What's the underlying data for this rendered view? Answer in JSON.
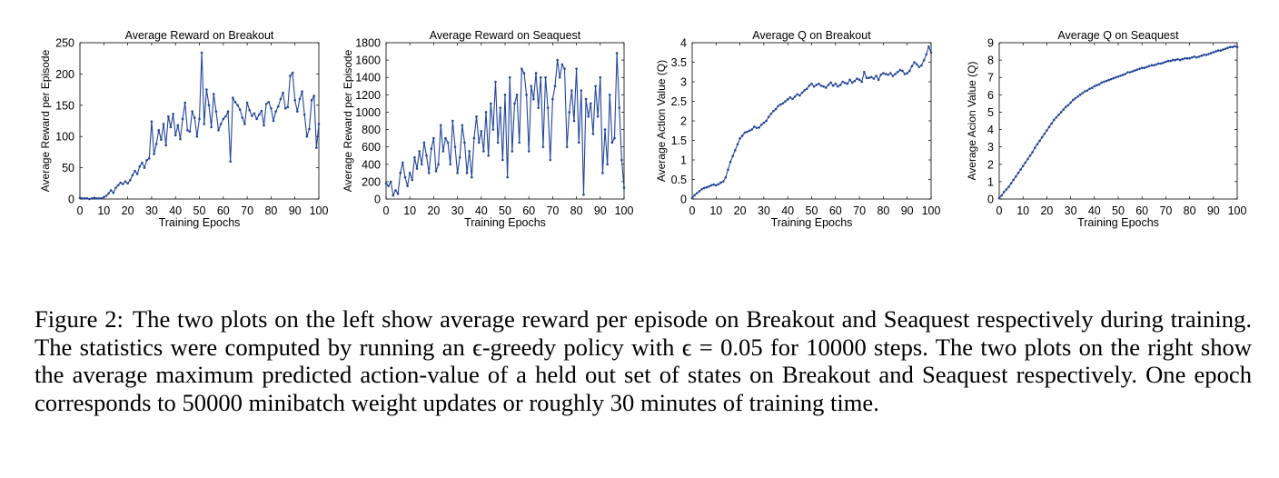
{
  "figure": {
    "caption": {
      "label": "Figure 2:",
      "text": "The two plots on the left show average reward per episode on Breakout and Seaquest respectively during training. The statistics were computed by running an ϵ-greedy policy with ϵ = 0.05 for 10000 steps. The two plots on the right show the average maximum predicted action-value of a held out set of states on Breakout and Seaquest respectively. One epoch corresponds to 50000 minibatch weight updates or roughly 30 minutes of training time."
    }
  },
  "chart_data": [
    {
      "type": "line",
      "title": "Average Reward on Breakout",
      "xlabel": "Training Epochs",
      "ylabel": "Average Reward per Episode",
      "xlim": [
        0,
        100
      ],
      "ylim": [
        0,
        250
      ],
      "xticks": [
        0,
        10,
        20,
        30,
        40,
        50,
        60,
        70,
        80,
        90,
        100
      ],
      "yticks": [
        0,
        50,
        100,
        150,
        200,
        250
      ],
      "grid": false,
      "color": "#23469b",
      "x": [
        0,
        1,
        2,
        3,
        4,
        5,
        6,
        7,
        8,
        9,
        10,
        11,
        12,
        13,
        14,
        15,
        16,
        17,
        18,
        19,
        20,
        21,
        22,
        23,
        24,
        25,
        26,
        27,
        28,
        29,
        30,
        31,
        32,
        33,
        34,
        35,
        36,
        37,
        38,
        39,
        40,
        41,
        42,
        43,
        44,
        45,
        46,
        47,
        48,
        49,
        50,
        51,
        52,
        53,
        54,
        55,
        56,
        57,
        58,
        59,
        60,
        61,
        62,
        63,
        64,
        65,
        66,
        67,
        68,
        69,
        70,
        71,
        72,
        73,
        74,
        75,
        76,
        77,
        78,
        79,
        80,
        81,
        82,
        83,
        84,
        85,
        86,
        87,
        88,
        89,
        90,
        91,
        92,
        93,
        94,
        95,
        96,
        97,
        98,
        99,
        100
      ],
      "y": [
        2,
        1,
        1,
        1,
        0,
        1,
        2,
        1,
        1,
        1,
        3,
        5,
        9,
        14,
        10,
        18,
        22,
        26,
        24,
        28,
        25,
        30,
        38,
        45,
        40,
        52,
        58,
        50,
        62,
        65,
        124,
        72,
        88,
        110,
        95,
        120,
        86,
        132,
        115,
        136,
        102,
        118,
        96,
        128,
        154,
        110,
        108,
        140,
        130,
        100,
        128,
        234,
        120,
        175,
        150,
        115,
        168,
        140,
        110,
        120,
        128,
        132,
        140,
        60,
        162,
        155,
        150,
        143,
        130,
        120,
        154,
        142,
        133,
        137,
        128,
        135,
        141,
        118,
        152,
        155,
        145,
        125,
        140,
        148,
        160,
        170,
        145,
        147,
        197,
        202,
        158,
        140,
        160,
        172,
        135,
        100,
        112,
        158,
        165,
        82,
        120
      ]
    },
    {
      "type": "line",
      "title": "Average Reward on Seaquest",
      "xlabel": "Training Epochs",
      "ylabel": "Average Reward per Episode",
      "xlim": [
        0,
        100
      ],
      "ylim": [
        0,
        1800
      ],
      "xticks": [
        0,
        10,
        20,
        30,
        40,
        50,
        60,
        70,
        80,
        90,
        100
      ],
      "yticks": [
        0,
        200,
        400,
        600,
        800,
        1000,
        1200,
        1400,
        1600,
        1800
      ],
      "grid": false,
      "color": "#23469b",
      "x": [
        0,
        1,
        2,
        3,
        4,
        5,
        6,
        7,
        8,
        9,
        10,
        11,
        12,
        13,
        14,
        15,
        16,
        17,
        18,
        19,
        20,
        21,
        22,
        23,
        24,
        25,
        26,
        27,
        28,
        29,
        30,
        31,
        32,
        33,
        34,
        35,
        36,
        37,
        38,
        39,
        40,
        41,
        42,
        43,
        44,
        45,
        46,
        47,
        48,
        49,
        50,
        51,
        52,
        53,
        54,
        55,
        56,
        57,
        58,
        59,
        60,
        61,
        62,
        63,
        64,
        65,
        66,
        67,
        68,
        69,
        70,
        71,
        72,
        73,
        74,
        75,
        76,
        77,
        78,
        79,
        80,
        81,
        82,
        83,
        84,
        85,
        86,
        87,
        88,
        89,
        90,
        91,
        92,
        93,
        94,
        95,
        96,
        97,
        98,
        99,
        100
      ],
      "y": [
        180,
        150,
        200,
        40,
        100,
        60,
        300,
        420,
        250,
        150,
        300,
        220,
        480,
        350,
        550,
        400,
        650,
        500,
        300,
        580,
        700,
        320,
        400,
        850,
        550,
        700,
        650,
        400,
        900,
        600,
        300,
        480,
        850,
        650,
        300,
        550,
        250,
        700,
        950,
        650,
        780,
        550,
        1000,
        500,
        1100,
        800,
        1350,
        650,
        1050,
        450,
        1200,
        250,
        1400,
        550,
        1100,
        1200,
        650,
        1500,
        1450,
        1200,
        550,
        1300,
        1150,
        1450,
        1050,
        1400,
        600,
        1400,
        1050,
        450,
        1150,
        1300,
        1600,
        1400,
        1550,
        1500,
        600,
        1000,
        1250,
        900,
        1500,
        650,
        1250,
        50,
        1150,
        950,
        1100,
        750,
        1300,
        950,
        1400,
        300,
        800,
        400,
        1200,
        650,
        700,
        1680,
        1050,
        450,
        130
      ]
    },
    {
      "type": "line",
      "title": "Average Q on Breakout",
      "xlabel": "Training Epochs",
      "ylabel": "Average Action Value (Q)",
      "xlim": [
        0,
        100
      ],
      "ylim": [
        0,
        4
      ],
      "xticks": [
        0,
        10,
        20,
        30,
        40,
        50,
        60,
        70,
        80,
        90,
        100
      ],
      "yticks": [
        0,
        0.5,
        1,
        1.5,
        2,
        2.5,
        3,
        3.5,
        4
      ],
      "grid": false,
      "color": "#23469b",
      "x": [
        0,
        1,
        2,
        3,
        4,
        5,
        6,
        7,
        8,
        9,
        10,
        11,
        12,
        13,
        14,
        15,
        16,
        17,
        18,
        19,
        20,
        21,
        22,
        23,
        24,
        25,
        26,
        27,
        28,
        29,
        30,
        31,
        32,
        33,
        34,
        35,
        36,
        37,
        38,
        39,
        40,
        41,
        42,
        43,
        44,
        45,
        46,
        47,
        48,
        49,
        50,
        51,
        52,
        53,
        54,
        55,
        56,
        57,
        58,
        59,
        60,
        61,
        62,
        63,
        64,
        65,
        66,
        67,
        68,
        69,
        70,
        71,
        72,
        73,
        74,
        75,
        76,
        77,
        78,
        79,
        80,
        81,
        82,
        83,
        84,
        85,
        86,
        87,
        88,
        89,
        90,
        91,
        92,
        93,
        94,
        95,
        96,
        97,
        98,
        99,
        100
      ],
      "y": [
        0.02,
        0.1,
        0.15,
        0.2,
        0.25,
        0.28,
        0.3,
        0.32,
        0.35,
        0.37,
        0.35,
        0.38,
        0.42,
        0.45,
        0.55,
        0.75,
        0.95,
        1.1,
        1.25,
        1.4,
        1.55,
        1.62,
        1.7,
        1.72,
        1.75,
        1.78,
        1.85,
        1.82,
        1.83,
        1.9,
        1.95,
        2.0,
        2.1,
        2.18,
        2.25,
        2.3,
        2.38,
        2.42,
        2.45,
        2.5,
        2.55,
        2.6,
        2.56,
        2.62,
        2.68,
        2.65,
        2.72,
        2.78,
        2.82,
        2.9,
        2.95,
        2.88,
        2.92,
        2.95,
        2.9,
        2.88,
        2.85,
        2.92,
        2.98,
        2.9,
        2.95,
        2.88,
        2.92,
        3.0,
        2.97,
        2.95,
        3.05,
        2.98,
        3.02,
        3.08,
        3.05,
        3.0,
        3.25,
        3.1,
        3.1,
        3.12,
        3.08,
        3.15,
        3.05,
        3.18,
        3.22,
        3.2,
        3.18,
        3.22,
        3.15,
        3.2,
        3.25,
        3.3,
        3.28,
        3.2,
        3.22,
        3.28,
        3.4,
        3.5,
        3.45,
        3.38,
        3.42,
        3.55,
        3.7,
        3.9,
        3.75
      ]
    },
    {
      "type": "line",
      "title": "Average Q on Seaquest",
      "xlabel": "Training Epochs",
      "ylabel": "Average Acion Value (Q)",
      "xlim": [
        0,
        100
      ],
      "ylim": [
        0,
        9
      ],
      "xticks": [
        0,
        10,
        20,
        30,
        40,
        50,
        60,
        70,
        80,
        90,
        100
      ],
      "yticks": [
        0,
        1,
        2,
        3,
        4,
        5,
        6,
        7,
        8,
        9
      ],
      "grid": false,
      "color": "#23469b",
      "x": [
        0,
        1,
        2,
        3,
        4,
        5,
        6,
        7,
        8,
        9,
        10,
        11,
        12,
        13,
        14,
        15,
        16,
        17,
        18,
        19,
        20,
        21,
        22,
        23,
        24,
        25,
        26,
        27,
        28,
        29,
        30,
        31,
        32,
        33,
        34,
        35,
        36,
        37,
        38,
        39,
        40,
        41,
        42,
        43,
        44,
        45,
        46,
        47,
        48,
        49,
        50,
        51,
        52,
        53,
        54,
        55,
        56,
        57,
        58,
        59,
        60,
        61,
        62,
        63,
        64,
        65,
        66,
        67,
        68,
        69,
        70,
        71,
        72,
        73,
        74,
        75,
        76,
        77,
        78,
        79,
        80,
        81,
        82,
        83,
        84,
        85,
        86,
        87,
        88,
        89,
        90,
        91,
        92,
        93,
        94,
        95,
        96,
        97,
        98,
        99,
        100
      ],
      "y": [
        0.05,
        0.2,
        0.4,
        0.55,
        0.7,
        0.9,
        1.1,
        1.3,
        1.5,
        1.7,
        1.9,
        2.1,
        2.3,
        2.5,
        2.7,
        2.95,
        3.15,
        3.35,
        3.55,
        3.75,
        3.95,
        4.15,
        4.35,
        4.55,
        4.7,
        4.85,
        5.0,
        5.15,
        5.3,
        5.4,
        5.55,
        5.7,
        5.8,
        5.9,
        6.0,
        6.1,
        6.2,
        6.25,
        6.35,
        6.4,
        6.5,
        6.55,
        6.6,
        6.7,
        6.75,
        6.8,
        6.85,
        6.9,
        6.95,
        7.0,
        7.05,
        7.1,
        7.15,
        7.2,
        7.3,
        7.3,
        7.35,
        7.4,
        7.45,
        7.5,
        7.55,
        7.55,
        7.6,
        7.65,
        7.7,
        7.7,
        7.75,
        7.8,
        7.8,
        7.85,
        7.9,
        7.95,
        7.95,
        8.0,
        8.0,
        8.05,
        8.0,
        8.05,
        8.1,
        8.1,
        8.1,
        8.15,
        8.2,
        8.15,
        8.2,
        8.25,
        8.3,
        8.3,
        8.35,
        8.4,
        8.45,
        8.5,
        8.55,
        8.55,
        8.6,
        8.65,
        8.7,
        8.75,
        8.75,
        8.8,
        8.75
      ]
    }
  ]
}
